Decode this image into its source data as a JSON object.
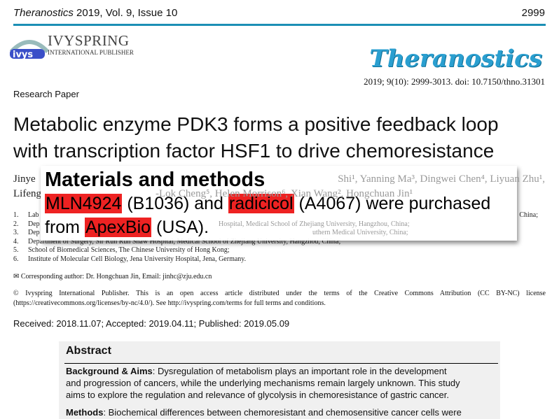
{
  "header": {
    "journal": "Theranostics",
    "issue": "2019, Vol. 9, Issue 10",
    "page": "2999"
  },
  "publisher": {
    "name": "IVYSPRING",
    "subtitle": "INTERNATIONAL PUBLISHER",
    "logo_text": "ivys"
  },
  "journal_logo": "Theranostics",
  "citation": "2019; 9(10): 2999-3013. doi: 10.7150/thno.31301",
  "article_type": "Research Paper",
  "title": [
    "Metabolic enzyme PDK3 forms a positive feedback loop",
    "with transcription factor HSF1 to drive chemoresistance"
  ],
  "authors": {
    "line1_left": "Jinye",
    "line1_right": "Shi¹, Yanning Ma³, Dingwei Chen⁴, Liyuan Zhu¹,",
    "line2_left": "Lifeng",
    "line2_right": "-Lok Cheng⁵, Helen Morrison⁶, Xian Wang², Hongchuan Jin¹"
  },
  "affiliations": [
    {
      "num": "1.",
      "left": "Lab",
      "right": "China;"
    },
    {
      "num": "2.",
      "left": "Dep",
      "right": "Hospital, Medical School of Zhejiang University, Hangzhou, China;"
    },
    {
      "num": "3.",
      "left": "Dep",
      "right": "uthern Medical University, China;"
    },
    {
      "num": "4.",
      "text": "Department of Surgery, Sir Run Run Shaw Hospital, Medical School of Zhejiang University, Hangzhou, China;"
    },
    {
      "num": "5.",
      "text": "School of Biomedical Sciences, The Chinese University of Hong Kong;"
    },
    {
      "num": "6.",
      "text": "Institute of Molecular Cell Biology, Jena University Hospital, Jena, Germany."
    }
  ],
  "corresponding": "✉ Corresponding author: Dr. Hongchuan Jin, Email: jinhc@zju.edu.cn",
  "license": [
    "© Ivyspring International Publisher. This is an open access article distributed under the terms of the Creative Commons Attribution (CC BY-NC) license",
    "(https://creativecommons.org/licenses/by-nc/4.0/). See http://ivyspring.com/terms for full terms and conditions."
  ],
  "dates": "Received: 2018.11.07; Accepted: 2019.04.11; Published: 2019.05.09",
  "abstract": {
    "heading": "Abstract",
    "bg_label": "Background & Aims",
    "bg_lines": [
      ": Dysregulation of metabolism plays an important role in the development",
      "and progression of cancers, while the underlying mechanisms remain largely unknown. This study",
      "aims to explore the regulation and relevance of glycolysis in chemoresistance of gastric cancer."
    ],
    "methods_label": "Methods",
    "methods_text": ": Biochemical differences between chemoresistant and chemosensitive cancer cells were"
  },
  "popup": {
    "title": "Materials and methods",
    "h1": "MLN4924",
    "t1": " (B1036) and ",
    "h2": "radicicol",
    "t2": " (A4067) were purchased",
    "t3": "from ",
    "h3": "ApexBio",
    "t4": " (USA).",
    "highlight_color": "#ee2222"
  },
  "colors": {
    "rule": "#1b8fb5",
    "logo": "#2a9fd0"
  }
}
